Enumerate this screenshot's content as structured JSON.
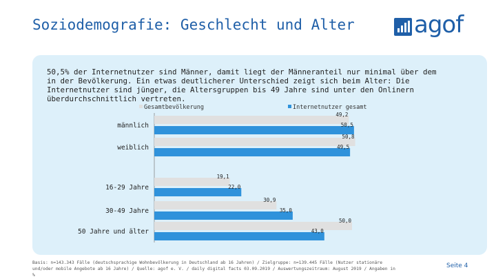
{
  "title": "Soziodemografie: Geschlecht und Alter",
  "logo": {
    "text": "agof",
    "icon": "bar-chart-icon"
  },
  "summary": "50,5% der Internetnutzer sind Männer, damit liegt der Männeranteil nur minimal über dem in der Bevölkerung. Ein etwas deutlicherer Unterschied zeigt sich beim Alter: Die Internetnutzer sind jünger, die Altersgruppen bis 49 Jahre sind unter den Onlinern überdurchschnittlich vertreten.",
  "footer": "Basis: n=143.343 Fälle (deutschsprachige Wohnbevölkerung in Deutschland ab 16 Jahren) / Zielgruppe: n=139.445 Fälle (Nutzer stationäre und/oder mobile Angebote ab 16 Jahre) / Quelle: agof e. V. / daily digital facts 03.09.2019 / Auswertungszeitraum: August 2019 / Angaben in %",
  "page_label": "Seite 4",
  "colors": {
    "accent": "#1f5fa8",
    "series_pop": "#e0e0e0",
    "series_net": "#2f92db",
    "panel": "#ddf0fa"
  },
  "chart_data": {
    "type": "bar",
    "orientation": "horizontal",
    "categories": [
      "männlich",
      "weiblich",
      "16-29 Jahre",
      "30-49 Jahre",
      "50 Jahre und älter"
    ],
    "series": [
      {
        "name": "Gesamtbevölkerung",
        "values": [
          49.2,
          50.8,
          19.1,
          30.9,
          50.0
        ],
        "labels": [
          "49,2",
          "50,8",
          "19,1",
          "30,9",
          "50,0"
        ]
      },
      {
        "name": "Internetnutzer gesamt",
        "values": [
          50.5,
          49.5,
          22.0,
          35.0,
          43.0
        ],
        "labels": [
          "50,5",
          "49,5",
          "22,0",
          "35,0",
          "43,0"
        ]
      }
    ],
    "legend_position": "top",
    "grid": false
  }
}
